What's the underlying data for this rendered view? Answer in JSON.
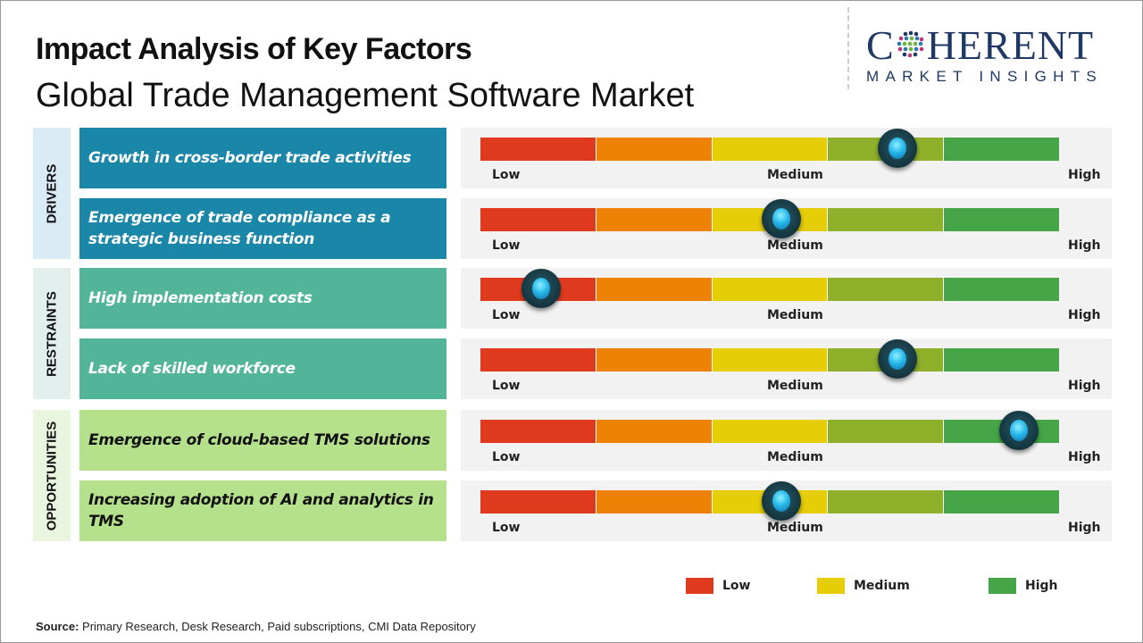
{
  "title": "Impact Analysis of Key Factors",
  "subtitle": "Global Trade Management Software Market",
  "logo": {
    "main_left": "C",
    "main_right": "HERENT",
    "sub": "MARKET INSIGHTS"
  },
  "scale_labels": {
    "low": "Low",
    "medium": "Medium",
    "high": "High"
  },
  "scale_colors": [
    "#e03a1e",
    "#ee8207",
    "#e5cd08",
    "#8fb02a",
    "#45a547"
  ],
  "categories": [
    {
      "name": "DRIVERS",
      "bg": "#d9ecf6",
      "factor_bg": "#1a86a8",
      "factor_color": "#ffffff"
    },
    {
      "name": "RESTRAINTS",
      "bg": "#e2efed",
      "factor_bg": "#52b59a",
      "factor_color": "#ffffff"
    },
    {
      "name": "OPPORTUNITIES",
      "bg": "#eaf5e0",
      "factor_bg": "#b5e08c",
      "factor_color": "#111111"
    }
  ],
  "chart_data": {
    "type": "gauge-table",
    "title": "Impact Analysis of Key Factors",
    "subtitle": "Global Trade Management Software Market",
    "scale": {
      "min": 0,
      "max": 1,
      "labels": [
        "Low",
        "Medium",
        "High"
      ]
    },
    "factors": [
      {
        "category": "DRIVERS",
        "label": "Growth in cross-border trade activities",
        "impact": 0.72
      },
      {
        "category": "DRIVERS",
        "label": "Emergence of trade compliance as a strategic business function",
        "impact": 0.52
      },
      {
        "category": "RESTRAINTS",
        "label": "High implementation costs",
        "impact": 0.105
      },
      {
        "category": "RESTRAINTS",
        "label": "Lack of skilled workforce",
        "impact": 0.72
      },
      {
        "category": "OPPORTUNITIES",
        "label": "Emergence of cloud-based TMS solutions",
        "impact": 0.93
      },
      {
        "category": "OPPORTUNITIES",
        "label": "Increasing adoption of AI and analytics in TMS",
        "impact": 0.52
      }
    ],
    "legend": [
      {
        "label": "Low",
        "color": "#e03a1e"
      },
      {
        "label": "Medium",
        "color": "#e5cd08"
      },
      {
        "label": "High",
        "color": "#45a547"
      }
    ]
  },
  "source": {
    "label": "Source:",
    "text": " Primary Research, Desk Research, Paid subscriptions, CMI Data Repository"
  }
}
